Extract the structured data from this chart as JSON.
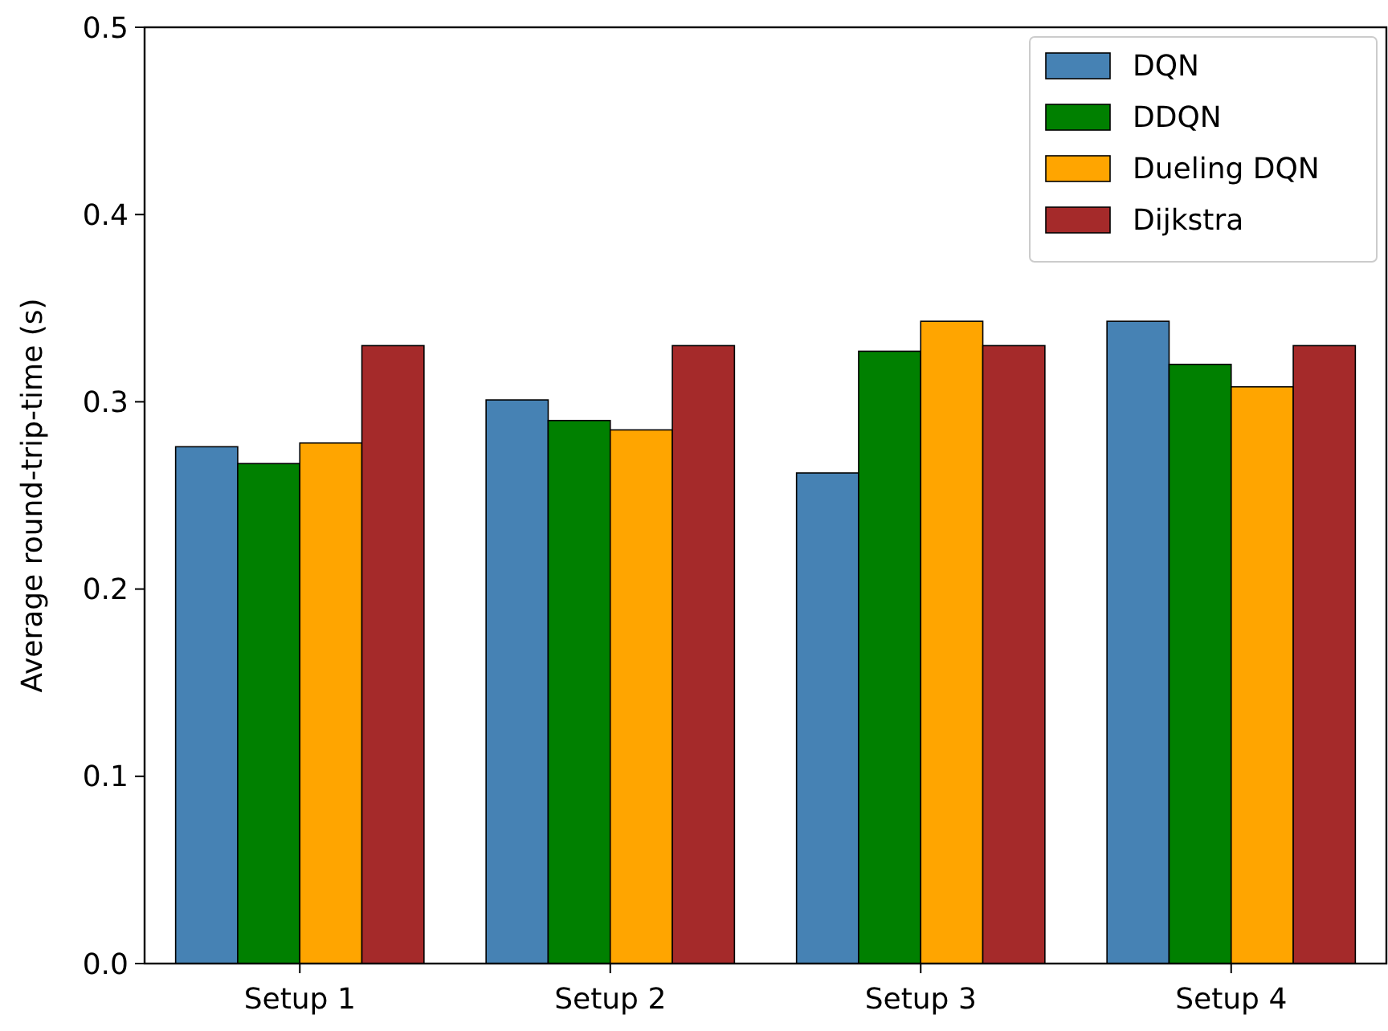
{
  "chart_data": {
    "type": "bar",
    "ylabel": "Average round-trip-time (s)",
    "categories": [
      "Setup 1",
      "Setup 2",
      "Setup 3",
      "Setup 4"
    ],
    "series": [
      {
        "name": "DQN",
        "color": "#4682b4",
        "values": [
          0.276,
          0.301,
          0.262,
          0.343
        ]
      },
      {
        "name": "DDQN",
        "color": "#008000",
        "values": [
          0.267,
          0.29,
          0.327,
          0.32
        ]
      },
      {
        "name": "Dueling DQN",
        "color": "#ffa500",
        "values": [
          0.278,
          0.285,
          0.343,
          0.308
        ]
      },
      {
        "name": "Dijkstra",
        "color": "#a52a2a",
        "values": [
          0.33,
          0.33,
          0.33,
          0.33
        ]
      }
    ],
    "ylim": [
      0,
      0.5
    ],
    "yticks": [
      {
        "value": 0,
        "label": "0.0"
      },
      0.1,
      0.2,
      0.3,
      0.4,
      0.5
    ],
    "grid": false,
    "legend": "top right"
  }
}
